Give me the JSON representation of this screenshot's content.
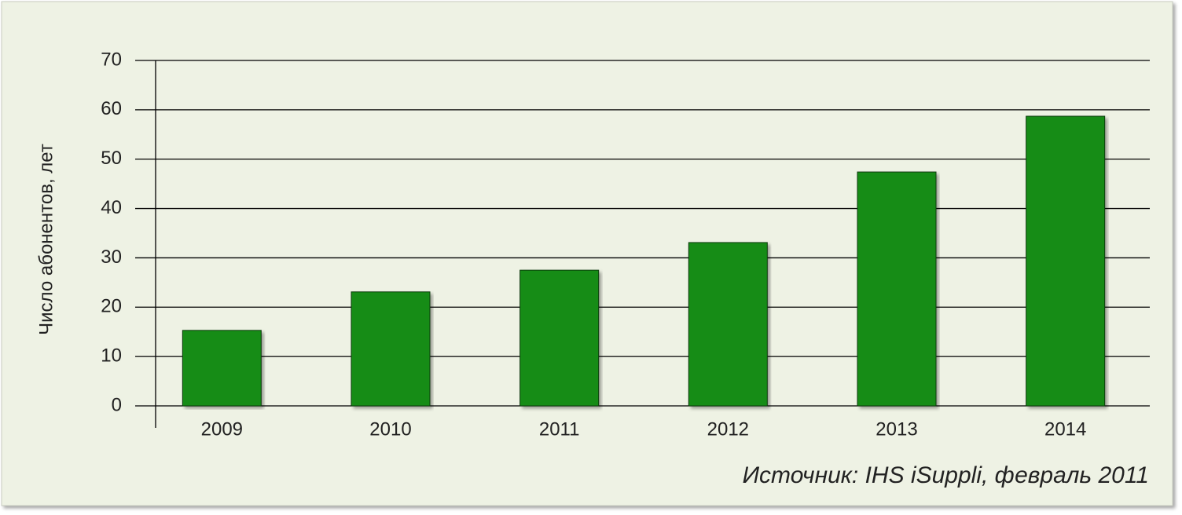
{
  "chart_data": {
    "type": "bar",
    "y_label": "Число абонентов, лет",
    "source": "Источник: IHS iSuppli, февраль 2011",
    "categories": [
      "2009",
      "2010",
      "2011",
      "2012",
      "2013",
      "2014"
    ],
    "values": [
      15.3,
      23.1,
      27.5,
      33.1,
      47.4,
      58.7
    ],
    "color": "#148c14",
    "ylim": [
      0,
      70
    ],
    "yticks": [
      0,
      10,
      20,
      30,
      40,
      50,
      60,
      70
    ],
    "grid": true
  }
}
